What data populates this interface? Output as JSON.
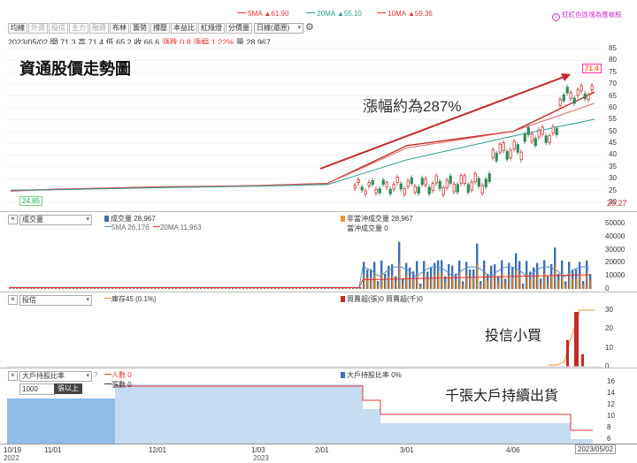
{
  "header": {
    "ma5_label": "5MA",
    "ma5_value": "▲61.90",
    "ma20_label": "20MA",
    "ma20_value": "▲55.10",
    "ma10_label": "10MA",
    "ma10_value": "▲59.36",
    "color_setting_link": "紅紅色區塊為應被股"
  },
  "toolbar": {
    "tabs": [
      "均線",
      "外資",
      "投信",
      "主力",
      "融資",
      "布林",
      "籌勢",
      "撐壓",
      "本益比",
      "紅綠燈",
      "分價量"
    ],
    "period_select": "日線(還原)"
  },
  "quote": {
    "date": "2023/05/02",
    "open": "開 71.3",
    "high": "高 71.4",
    "low": "低 65.2",
    "close": "收 66.6",
    "change": "漲跌 0.8",
    "pct": "漲幅 1.22%",
    "volume": "量 28,967"
  },
  "annotations": {
    "title": "資通股價走勢圖",
    "rise": "漲幅約為287%",
    "trust_buy": "投信小買",
    "holders_sell": "千張大戶持續出貨"
  },
  "price_panel": {
    "yticks": [
      "85",
      "80",
      "75",
      "70",
      "65",
      "60",
      "55",
      "50",
      "45",
      "40",
      "35",
      "30",
      "25",
      "20"
    ],
    "last_price_tag": "71.4",
    "low_tag": "24.85",
    "low_right": "20.27"
  },
  "volume_panel": {
    "select": "成交量",
    "legend_vol": "成交量 28,967",
    "legend_ma5": "5MA 26,176",
    "legend_ma20": "20MA 11,963",
    "legend_nonday": "非當沖成交量 28,967",
    "legend_day": "當沖成交量 0",
    "yticks": [
      "50000",
      "40000",
      "30000",
      "20000",
      "10000",
      "0"
    ]
  },
  "trust_panel": {
    "select": "投信",
    "legend_inv": "庫存45 (0.1%)",
    "legend_buysell": "買賣超(張)0 買賣超(千)0",
    "yticks": [
      "30",
      "20",
      "10",
      "0"
    ]
  },
  "holders_panel": {
    "select": "大戶持股比率",
    "help": "?",
    "qty": "1000",
    "qty_unit": "張以上",
    "legend_people": "人數 0",
    "legend_shares": "張數 0",
    "legend_ratio": "大戶持股比率 0%",
    "yticks": [
      "16",
      "14",
      "12",
      "10",
      "8",
      "6"
    ]
  },
  "xaxis": {
    "labels": [
      "10/19",
      "11/01",
      "12/01",
      "1/03",
      "2/01",
      "3/01",
      "4/06",
      "2023/05/02"
    ],
    "years": [
      "2022",
      "2023"
    ]
  },
  "chart_data": {
    "type": "line",
    "title": "資通股價走勢圖",
    "xlabel": "",
    "ylabel": "",
    "ylim": [
      20,
      85
    ],
    "x": [
      "10/19",
      "11/01",
      "12/01",
      "1/03",
      "2/01",
      "3/01",
      "4/06",
      "5/02"
    ],
    "series": [
      {
        "name": "收盤",
        "values": [
          24.85,
          25.5,
          26.5,
          27,
          28,
          44,
          50,
          66.6
        ]
      },
      {
        "name": "5MA",
        "values": [
          25,
          25.4,
          26.4,
          27,
          28,
          43,
          50,
          61.9
        ]
      },
      {
        "name": "20MA",
        "values": [
          25.2,
          25.3,
          26.2,
          26.8,
          27.5,
          38,
          48,
          55.1
        ]
      }
    ]
  }
}
